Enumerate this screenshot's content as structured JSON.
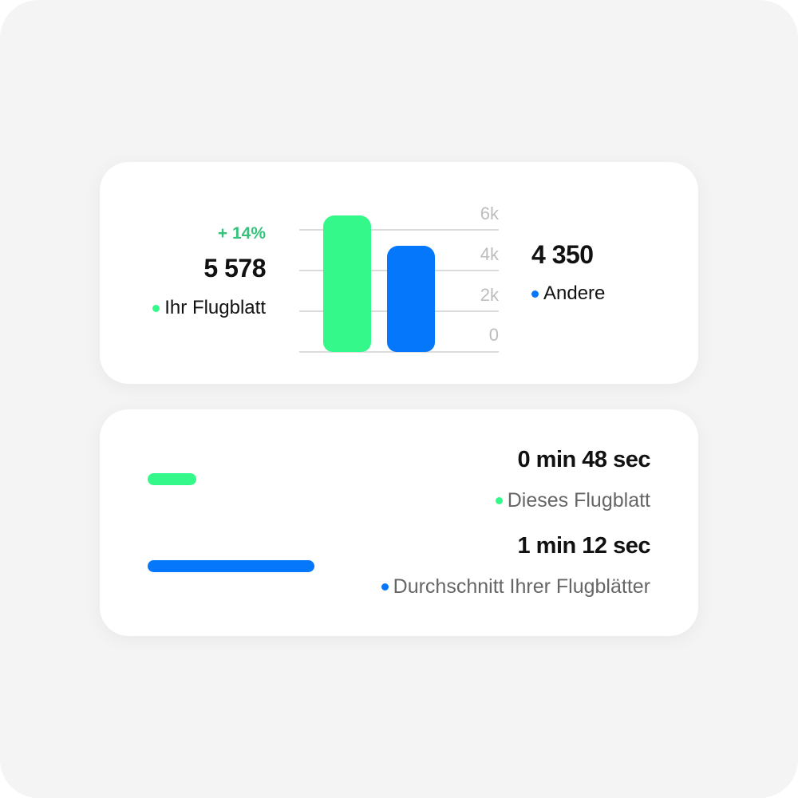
{
  "colors": {
    "green": "#34f98a",
    "blue": "#0477fa",
    "change_green": "#35c27a"
  },
  "card1": {
    "change": "+ 14%",
    "own_value": "5 578",
    "own_label": "Ihr Flugblatt",
    "other_value": "4 350",
    "other_label": "Andere"
  },
  "chart_data": {
    "type": "bar",
    "categories": [
      "Ihr Flugblatt",
      "Andere"
    ],
    "values": [
      5578,
      4350
    ],
    "y_ticks": [
      "6k",
      "4k",
      "2k",
      "0"
    ],
    "ylim": [
      0,
      6000
    ],
    "grid": true
  },
  "card2": {
    "items": [
      {
        "time": "0 min 48 sec",
        "label": "Dieses Flugblatt",
        "seconds": 48,
        "fill": 0.29
      },
      {
        "time": "1 min 12 sec",
        "label": "Durchschnitt Ihrer Flugblätter",
        "seconds": 72,
        "fill": 1.0
      }
    ]
  }
}
